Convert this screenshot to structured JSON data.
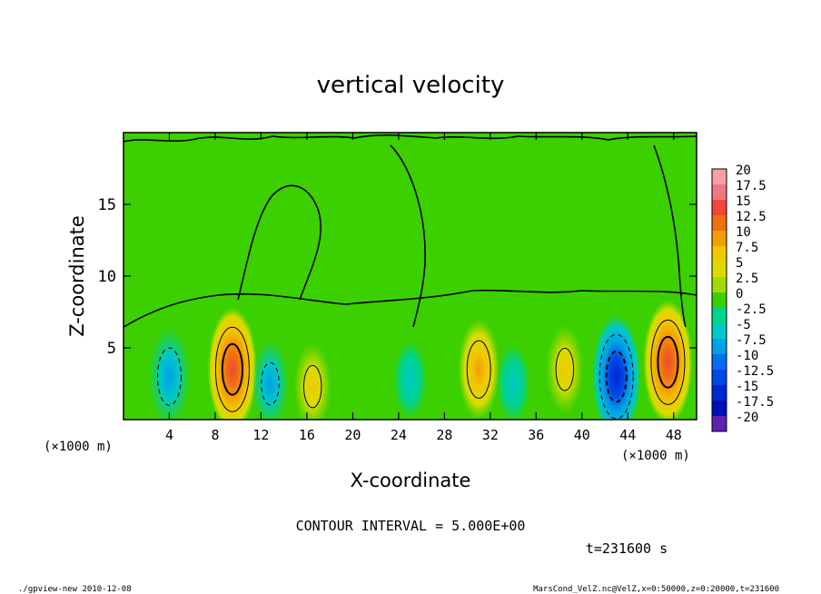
{
  "chart_data": {
    "type": "heatmap",
    "title": "vertical velocity",
    "xlabel": "X-coordinate",
    "ylabel": "Z-coordinate",
    "x_unit_label_left": "(×1000 m)",
    "x_unit_label_right": "(×1000 m)",
    "xlim": [
      0,
      50
    ],
    "ylim": [
      0,
      20
    ],
    "x_ticks": [
      4,
      8,
      12,
      16,
      20,
      24,
      28,
      32,
      36,
      40,
      44,
      48
    ],
    "y_ticks": [
      5,
      10,
      15
    ],
    "contour_interval_text": "CONTOUR INTERVAL = 5.000E+00",
    "time_text": "t=231600 s",
    "colorbar": {
      "levels": [
        "20",
        "17.5",
        "15",
        "12.5",
        "10",
        "7.5",
        "5",
        "2.5",
        "0",
        "-2.5",
        "-5",
        "-7.5",
        "-10",
        "-12.5",
        "-15",
        "-17.5",
        "-20"
      ],
      "colors": [
        "#f4a0a8",
        "#f07880",
        "#f04838",
        "#f07010",
        "#f49c00",
        "#f0c800",
        "#d8dc00",
        "#a0dc00",
        "#38d000",
        "#00d48c",
        "#00c8c8",
        "#00a0e8",
        "#0070f0",
        "#0048e8",
        "#0028d0",
        "#0010b8",
        "#6020b0"
      ]
    },
    "features": [
      {
        "kind": "updraft",
        "x": 9.5,
        "z": 3.5,
        "peak": 12.5
      },
      {
        "kind": "downdraft",
        "x": 4.0,
        "z": 3.0,
        "peak": -7.5
      },
      {
        "kind": "downdraft",
        "x": 12.8,
        "z": 2.5,
        "peak": -5
      },
      {
        "kind": "updraft",
        "x": 16.5,
        "z": 2.3,
        "peak": 5
      },
      {
        "kind": "downdraft",
        "x": 25.0,
        "z": 2.8,
        "peak": -2.5
      },
      {
        "kind": "updraft",
        "x": 31.0,
        "z": 3.5,
        "peak": 7.5
      },
      {
        "kind": "downdraft",
        "x": 34.0,
        "z": 2.5,
        "peak": -2.5
      },
      {
        "kind": "updraft",
        "x": 38.5,
        "z": 3.5,
        "peak": 5
      },
      {
        "kind": "downdraft",
        "x": 43.0,
        "z": 3.0,
        "peak": -12.5
      },
      {
        "kind": "updraft",
        "x": 47.5,
        "z": 4.0,
        "peak": 12.5
      }
    ]
  },
  "footer": {
    "left": "./gpview-new   2010-12-08",
    "right": "MarsCond_VelZ.nc@VelZ,x=0:50000,z=0:20000,t=231600"
  }
}
